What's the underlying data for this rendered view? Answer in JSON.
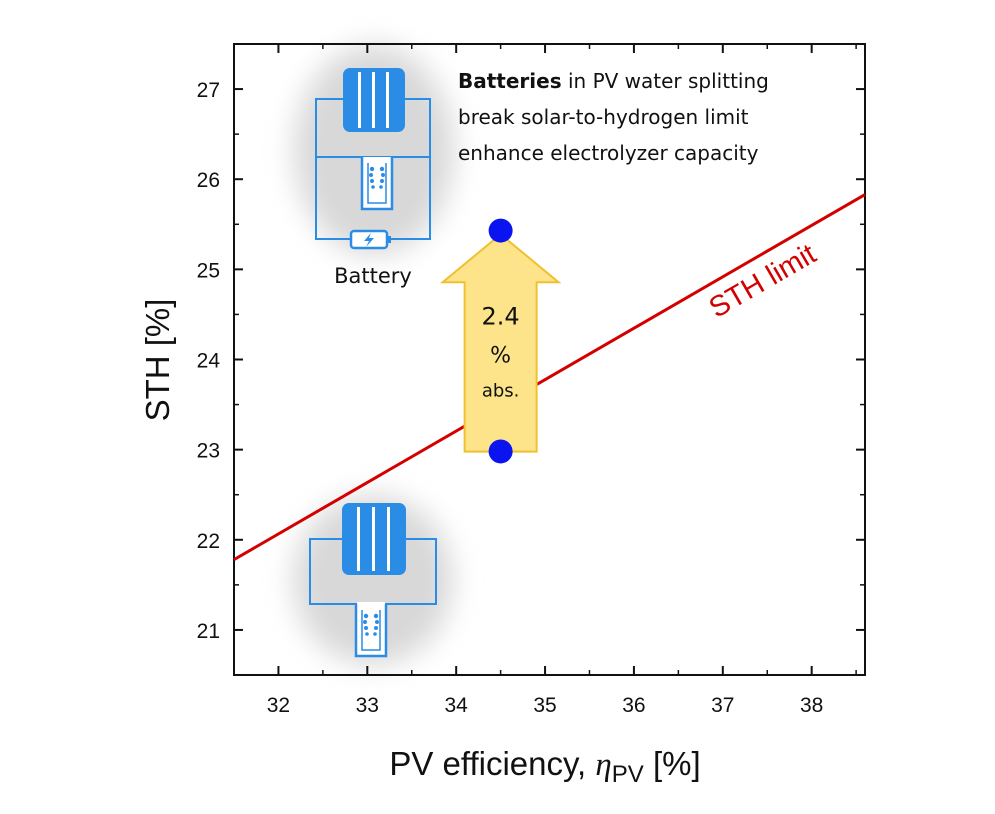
{
  "chart_data": {
    "type": "scatter",
    "title": "",
    "xlabel": "PV efficiency, ηPV [%]",
    "xlabel_parts": {
      "main": "PV efficiency, ",
      "symbol": "η",
      "subscript": "PV",
      "unit": " [%]"
    },
    "ylabel": "STH [%]",
    "xlim": [
      31.5,
      38.6
    ],
    "ylim": [
      20.5,
      27.5
    ],
    "xticks": [
      32,
      33,
      34,
      35,
      36,
      37,
      38
    ],
    "yticks": [
      21,
      22,
      23,
      24,
      25,
      26,
      27
    ],
    "grid": false,
    "series": [
      {
        "name": "STH limit",
        "type": "line",
        "color": "#d40000",
        "x": [
          31.5,
          38.6
        ],
        "y": [
          21.78,
          25.83
        ]
      },
      {
        "name": "Data points",
        "type": "scatter",
        "color": "#0a14f0",
        "x": [
          34.5,
          34.5
        ],
        "y": [
          25.43,
          22.98
        ]
      }
    ],
    "annotations": {
      "sth_label": "STH limit",
      "arrow": {
        "x": 34.5,
        "from_y": 23.0,
        "to_y": 25.4,
        "line1": "2.4",
        "line2": "%",
        "line3": "abs.",
        "fill": "#fde48a",
        "stroke": "#f0c030"
      },
      "headline": {
        "bold": "Batteries",
        "rest1": " in PV water splitting",
        "line2": "break solar-to-hydrogen limit",
        "line3": "enhance electrolyzer capacity"
      },
      "battery_icon_label": "Battery"
    },
    "icon_color": "#2b8ce6"
  }
}
